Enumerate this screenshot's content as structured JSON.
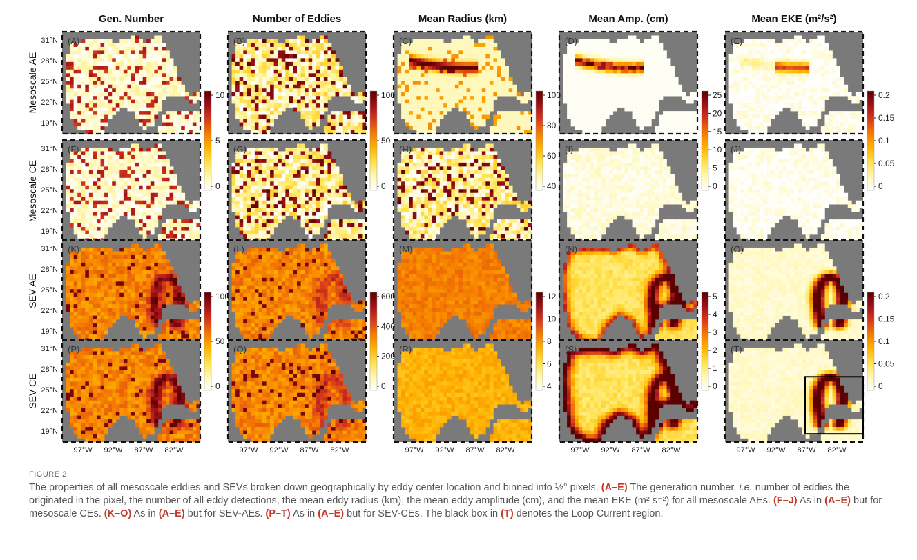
{
  "figure": {
    "col_titles": [
      "Gen. Number",
      "Number of Eddies",
      "Mean Radius (km)",
      "Mean Amp. (cm)",
      "Mean EKE (m²/s²)"
    ],
    "row_titles": [
      "Mesoscale AE",
      "Mesoscale CE",
      "SEV AE",
      "SEV CE"
    ],
    "panel_labels": [
      [
        "(A)",
        "(B)",
        "(C)",
        "(D)",
        "(E)"
      ],
      [
        "(F)",
        "(G)",
        "(H)",
        "(I)",
        "(J)"
      ],
      [
        "(K)",
        "(L)",
        "(M)",
        "(N)",
        "(O)"
      ],
      [
        "(P)",
        "(Q)",
        "(R)",
        "(S)",
        "(T)"
      ]
    ],
    "lat_ticks": [
      "31°N",
      "28°N",
      "25°N",
      "22°N",
      "19°N"
    ],
    "lon_ticks": [
      "97°W",
      "92°W",
      "87°W",
      "82°W"
    ],
    "colorbars": {
      "mesoscale": [
        [
          "10",
          "5",
          "0"
        ],
        [
          "100",
          "50",
          "0"
        ],
        [
          "100",
          "80",
          "60",
          "40"
        ],
        [
          "25",
          "20",
          "15",
          "10",
          "5",
          "0"
        ],
        [
          "0.2",
          "0.15",
          "0.1",
          "0.05",
          "0"
        ]
      ],
      "sev": [
        [
          "100",
          "50",
          "0"
        ],
        [
          "600",
          "400",
          "200",
          "0"
        ],
        [
          "12",
          "10",
          "8",
          "6",
          "4"
        ],
        [
          "5",
          "4",
          "3",
          "2",
          "1",
          "0"
        ],
        [
          "0.2",
          "0.15",
          "0.1",
          "0.05",
          "0"
        ]
      ]
    },
    "colormap": [
      "#ffffff",
      "#fff7b0",
      "#ffe14d",
      "#ffb300",
      "#f57c00",
      "#d73a1c",
      "#a0111a",
      "#5a0000"
    ],
    "land_color": "#7a7a7a",
    "loop_current_box_panel": "(T)"
  },
  "caption": {
    "label": "FIGURE 2",
    "text": [
      {
        "t": "The properties of all mesoscale eddies and SEVs broken down geographically by eddy center location and binned into ½° pixels. "
      },
      {
        "t": "(A–E)",
        "s": "b"
      },
      {
        "t": " The generation number, "
      },
      {
        "t": "i.e.",
        "s": "i"
      },
      {
        "t": " number of eddies the originated in the pixel, the number of all eddy detections, the mean eddy radius (km), the mean eddy amplitude (cm), and the mean EKE (m² s⁻²) for all mesoscale AEs. "
      },
      {
        "t": "(F–J)",
        "s": "b"
      },
      {
        "t": " As in "
      },
      {
        "t": "(A–E)",
        "s": "b"
      },
      {
        "t": " but for mesoscale CEs. "
      },
      {
        "t": "(K–O)",
        "s": "b"
      },
      {
        "t": " As in "
      },
      {
        "t": "(A–E)",
        "s": "b"
      },
      {
        "t": " but for SEV-AEs. "
      },
      {
        "t": "(P–T)",
        "s": "b"
      },
      {
        "t": " As in "
      },
      {
        "t": "(A–E)",
        "s": "b"
      },
      {
        "t": " but for SEV-CEs. The black box in "
      },
      {
        "t": "(T)",
        "s": "b"
      },
      {
        "t": " denotes the Loop Current region."
      }
    ]
  }
}
